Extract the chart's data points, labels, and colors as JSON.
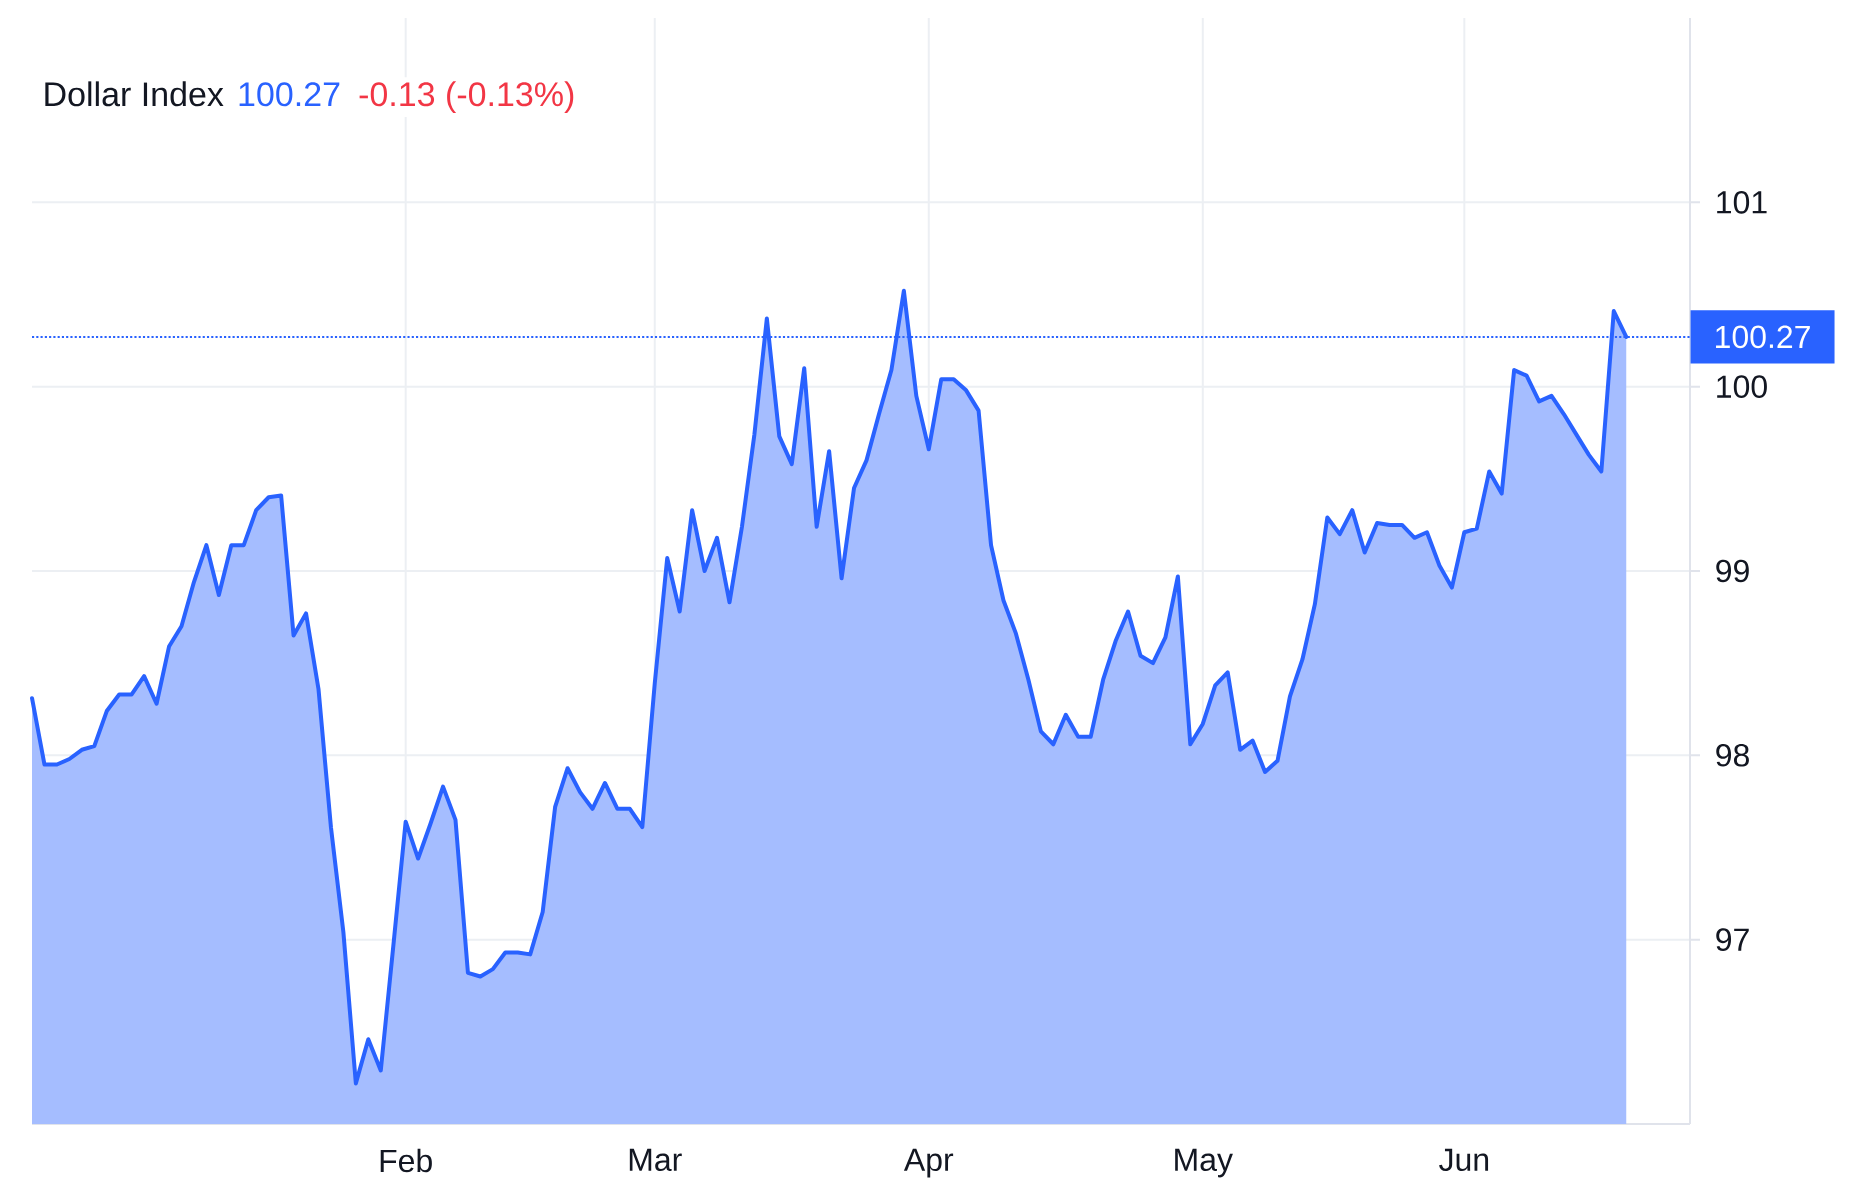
{
  "chart_data": {
    "type": "area",
    "title": "Dollar Index",
    "annotations": [
      "100.27",
      "-0.13 (-0.13%)"
    ],
    "categories": [
      null,
      null,
      null,
      null,
      null,
      null,
      null,
      null,
      null,
      null,
      null,
      null,
      null,
      null,
      null,
      null,
      null,
      null,
      null,
      null,
      null,
      null,
      null,
      null,
      null,
      null,
      null,
      null,
      null,
      null,
      "Feb",
      null,
      null,
      null,
      null,
      null,
      null,
      null,
      null,
      null,
      null,
      null,
      null,
      null,
      null,
      null,
      null,
      null,
      null,
      null,
      "Mar",
      null,
      null,
      null,
      null,
      null,
      null,
      null,
      null,
      null,
      null,
      null,
      null,
      null,
      null,
      null,
      null,
      null,
      null,
      null,
      null,
      null,
      "Apr",
      null,
      null,
      null,
      null,
      null,
      null,
      null,
      null,
      null,
      null,
      null,
      null,
      null,
      null,
      null,
      null,
      null,
      null,
      null,
      null,
      null,
      "May",
      null,
      null,
      null,
      null,
      null,
      null,
      null,
      null,
      null,
      null,
      null,
      null,
      null,
      null,
      null,
      null,
      null,
      null,
      null,
      null,
      "Jun",
      null,
      null,
      null,
      null,
      null,
      null,
      null,
      null,
      null,
      null,
      null,
      null,
      null
    ],
    "values": [
      98.31,
      97.95,
      97.95,
      97.98,
      98.03,
      98.05,
      98.24,
      98.33,
      98.33,
      98.43,
      98.28,
      98.59,
      98.7,
      98.94,
      99.14,
      98.87,
      99.14,
      99.14,
      99.33,
      99.4,
      99.41,
      98.65,
      98.77,
      98.36,
      97.61,
      97.04,
      96.22,
      96.46,
      96.29,
      96.96,
      97.64,
      97.44,
      97.63,
      97.83,
      97.65,
      96.82,
      96.8,
      96.84,
      96.93,
      96.93,
      96.92,
      97.15,
      97.72,
      97.93,
      97.8,
      97.71,
      97.85,
      97.71,
      97.71,
      97.61,
      98.39,
      99.07,
      98.78,
      99.33,
      99.0,
      99.18,
      98.83,
      99.24,
      99.74,
      100.37,
      99.73,
      99.58,
      100.1,
      99.24,
      99.65,
      98.96,
      99.45,
      99.6,
      99.85,
      100.09,
      100.52,
      99.95,
      99.66,
      100.04,
      100.04,
      99.98,
      99.87,
      99.14,
      98.84,
      98.66,
      98.41,
      98.13,
      98.06,
      98.22,
      98.1,
      98.1,
      98.41,
      98.62,
      98.78,
      98.54,
      98.5,
      98.64,
      98.97,
      98.06,
      98.17,
      98.38,
      98.45,
      98.03,
      98.08,
      97.91,
      97.97,
      98.32,
      98.52,
      98.82,
      99.29,
      99.2,
      99.33,
      99.1,
      99.26,
      99.25,
      99.25,
      99.18,
      99.21,
      99.03,
      98.91,
      99.21,
      99.23,
      99.54,
      99.42,
      100.09,
      100.06,
      99.92,
      99.95,
      99.85,
      99.74,
      99.63,
      99.54,
      100.41,
      100.27
    ],
    "color": "#2962ff",
    "ylim": [
      96,
      102
    ],
    "yticks": [
      97,
      98,
      99,
      100,
      101
    ],
    "grid": true,
    "ref_lines": [
      {
        "axis": "y",
        "value": 100.27,
        "label": "100.27",
        "color": "#2962ff",
        "line_style": "dotted"
      }
    ]
  }
}
